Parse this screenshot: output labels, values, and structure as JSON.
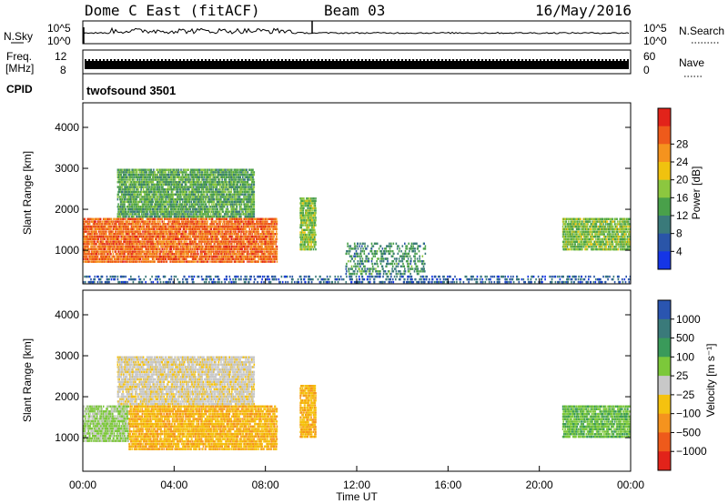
{
  "header": {
    "station": "Dome C East (fitACF)",
    "beam": "Beam 03",
    "date": "16/May/2016"
  },
  "strip": {
    "nsky_label": "N.Sky",
    "nsky_ticks": [
      "10^5",
      "10^0"
    ],
    "nsearch_label": "N.Search",
    "nsearch_ticks": [
      "10^5",
      "10^0"
    ],
    "freq_label_1": "Freq.",
    "freq_label_2": "[MHz]",
    "freq_ticks": [
      "12",
      "8"
    ],
    "nave_label": "Nave",
    "nave_ticks": [
      "60",
      "0"
    ],
    "cpid_label": "CPID",
    "cpid_value": "twofsound 3501"
  },
  "chart_data": [
    {
      "type": "heatmap",
      "parameter": "Power",
      "ylabel": "Slant Range [km]",
      "xlabel": "Time UT",
      "x_ticks": [
        "00:00",
        "04:00",
        "08:00",
        "12:00",
        "16:00",
        "20:00",
        "00:00"
      ],
      "xlim_hours": [
        0,
        24
      ],
      "y_ticks": [
        1000,
        2000,
        3000,
        4000
      ],
      "ylim_km": [
        180,
        4600
      ],
      "colorbar": {
        "label": "Power [dB]",
        "ticks": [
          "4",
          "8",
          "12",
          "16",
          "20",
          "24",
          "28"
        ],
        "range": [
          0,
          30
        ],
        "colors": [
          "#1535e6",
          "#2a55a8",
          "#3a7a7a",
          "#49a04a",
          "#8cc73f",
          "#f0c20f",
          "#f5931e",
          "#ee5a1b",
          "#e2231a"
        ]
      },
      "echo_regions": [
        {
          "t_start": 0.0,
          "t_end": 8.5,
          "r_min": 700,
          "r_max": 1800,
          "value": 24
        },
        {
          "t_start": 1.5,
          "t_end": 7.5,
          "r_min": 1800,
          "r_max": 3000,
          "value": 12
        },
        {
          "t_start": 9.5,
          "t_end": 10.2,
          "r_min": 1000,
          "r_max": 2300,
          "value": 14
        },
        {
          "t_start": 11.5,
          "t_end": 15.0,
          "r_min": 400,
          "r_max": 1200,
          "value": 10
        },
        {
          "t_start": 0.0,
          "t_end": 24.0,
          "r_min": 200,
          "r_max": 400,
          "value": 6
        },
        {
          "t_start": 21.0,
          "t_end": 24.0,
          "r_min": 1000,
          "r_max": 1800,
          "value": 14
        }
      ]
    },
    {
      "type": "heatmap",
      "parameter": "Velocity",
      "ylabel": "Slant Range [km]",
      "xlabel": "Time UT",
      "x_ticks": [
        "00:00",
        "04:00",
        "08:00",
        "12:00",
        "16:00",
        "20:00",
        "00:00"
      ],
      "xlim_hours": [
        0,
        24
      ],
      "y_ticks": [
        1000,
        2000,
        3000,
        4000
      ],
      "ylim_km": [
        180,
        4600
      ],
      "colorbar": {
        "label": "Velocity [m s⁻¹]",
        "ticks": [
          "1000",
          "500",
          "100",
          "25",
          "−25",
          "−100",
          "−500",
          "−1000"
        ],
        "range": [
          -1000,
          1000
        ],
        "colors": [
          "#2a55b0",
          "#3a7a7a",
          "#3a9a5a",
          "#7cc83a",
          "#c8c8c8",
          "#f5c20f",
          "#f5931e",
          "#ee5a1b",
          "#e2231a"
        ]
      },
      "echo_regions": [
        {
          "t_start": 0.0,
          "t_end": 2.0,
          "r_min": 900,
          "r_max": 1800,
          "value": 150
        },
        {
          "t_start": 2.0,
          "t_end": 8.5,
          "r_min": 700,
          "r_max": 1800,
          "value": -300
        },
        {
          "t_start": 1.5,
          "t_end": 7.5,
          "r_min": 1800,
          "r_max": 3000,
          "value": -50
        },
        {
          "t_start": 9.5,
          "t_end": 10.2,
          "r_min": 1000,
          "r_max": 2300,
          "value": -300
        },
        {
          "t_start": 21.0,
          "t_end": 24.0,
          "r_min": 1000,
          "r_max": 1800,
          "value": 300
        }
      ]
    }
  ]
}
